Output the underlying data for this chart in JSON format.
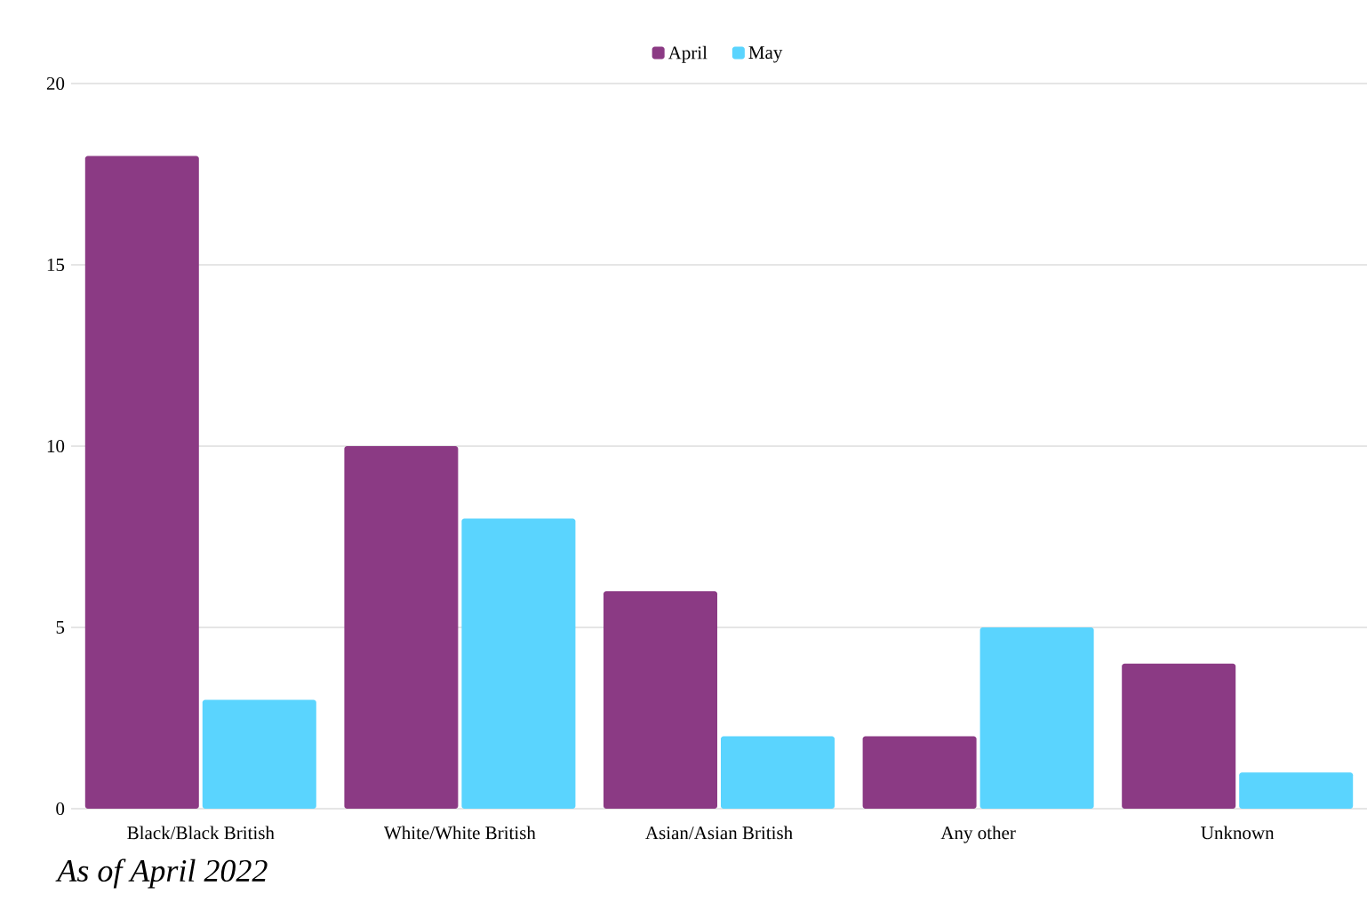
{
  "chart_data": {
    "type": "bar",
    "categories": [
      "Black/Black British",
      "White/White British",
      "Asian/Asian British",
      "Any other",
      "Unknown"
    ],
    "series": [
      {
        "name": "April",
        "color": "#8b3a84",
        "values": [
          18,
          10,
          6,
          2,
          4
        ]
      },
      {
        "name": "May",
        "color": "#5ad4fe",
        "values": [
          3,
          8,
          2,
          5,
          1
        ]
      }
    ],
    "ylim": [
      0,
      20
    ],
    "yticks": [
      0,
      5,
      10,
      15,
      20
    ],
    "grid": "y",
    "legend": "top",
    "annotations": [
      "As of April 2022"
    ]
  }
}
